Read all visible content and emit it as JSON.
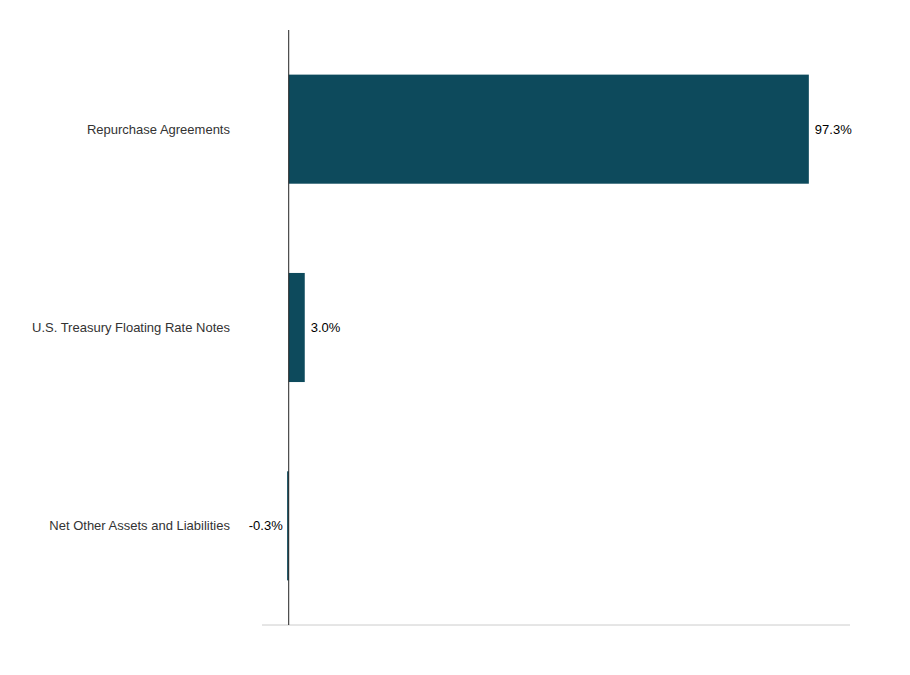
{
  "chart_data": {
    "type": "bar",
    "orientation": "horizontal",
    "categories": [
      "Repurchase Agreements",
      "U.S. Treasury Floating Rate Notes",
      "Net Other Assets and Liabilities"
    ],
    "values": [
      97.3,
      3.0,
      -0.3
    ],
    "value_labels": [
      "97.3%",
      "3.0%",
      "-0.3%"
    ],
    "color": "#0d4a5c",
    "xlim": [
      -5,
      105
    ],
    "data_labels": true,
    "tick_labels": "y",
    "grid": false
  }
}
